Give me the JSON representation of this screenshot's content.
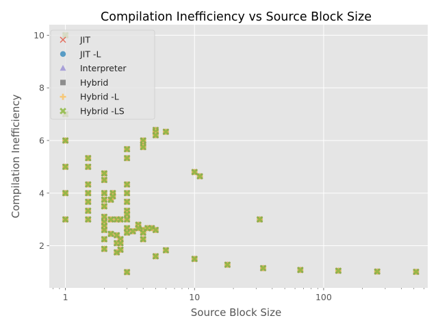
{
  "chart_data": {
    "type": "scatter",
    "title": "Compilation Inefficiency vs Source Block Size",
    "xlabel": "Source Block Size",
    "ylabel": "Compilation Inefficiency",
    "xscale": "log",
    "xlim": [
      0.75,
      640
    ],
    "ylim": [
      0.4,
      10.4
    ],
    "x_ticks": [
      1,
      10,
      100
    ],
    "x_tick_labels": [
      "1",
      "10",
      "100"
    ],
    "y_ticks": [
      2,
      4,
      6,
      8,
      10
    ],
    "y_tick_labels": [
      "2",
      "4",
      "6",
      "8",
      "10"
    ],
    "grid": true,
    "legend_position": "top-left",
    "series": [
      {
        "name": "JIT",
        "marker": "x",
        "color": "#E24A33"
      },
      {
        "name": "JIT -L",
        "marker": "circle",
        "color": "#348ABD"
      },
      {
        "name": "Interpreter",
        "marker": "triangle",
        "color": "#988ED5"
      },
      {
        "name": "Hybrid",
        "marker": "square",
        "color": "#777777"
      },
      {
        "name": "Hybrid -L",
        "marker": "plus",
        "color": "#FBC15E"
      },
      {
        "name": "Hybrid -LS",
        "marker": "x-filled",
        "color": "#8EBA42"
      }
    ],
    "points": [
      [
        1,
        10
      ],
      [
        1,
        7
      ],
      [
        1,
        6
      ],
      [
        1,
        5
      ],
      [
        1,
        4
      ],
      [
        1,
        3
      ],
      [
        1.5,
        5.33
      ],
      [
        1.5,
        5
      ],
      [
        1.5,
        4.33
      ],
      [
        1.5,
        4
      ],
      [
        1.5,
        3.67
      ],
      [
        1.5,
        3.33
      ],
      [
        1.5,
        3
      ],
      [
        2,
        4.75
      ],
      [
        2,
        4.5
      ],
      [
        2,
        4
      ],
      [
        2,
        3.75
      ],
      [
        2,
        3.5
      ],
      [
        2,
        3.1
      ],
      [
        2,
        2.9
      ],
      [
        2,
        2.75
      ],
      [
        2,
        2.6
      ],
      [
        2,
        2.25
      ],
      [
        2,
        1.88
      ],
      [
        2.25,
        3.75
      ],
      [
        2.25,
        3
      ],
      [
        2.25,
        2.45
      ],
      [
        2.33,
        4
      ],
      [
        2.33,
        3.88
      ],
      [
        2.5,
        3
      ],
      [
        2.5,
        2.4
      ],
      [
        2.5,
        2.1
      ],
      [
        2.5,
        1.75
      ],
      [
        2.67,
        3
      ],
      [
        2.67,
        2.25
      ],
      [
        2.67,
        2.1
      ],
      [
        2.67,
        1.85
      ],
      [
        3,
        5.67
      ],
      [
        3,
        5.33
      ],
      [
        3,
        4.33
      ],
      [
        3,
        4
      ],
      [
        3,
        3.67
      ],
      [
        3,
        3.33
      ],
      [
        3,
        3.2
      ],
      [
        3,
        3
      ],
      [
        3,
        2.67
      ],
      [
        3,
        2.5
      ],
      [
        3,
        1
      ],
      [
        3.33,
        2.55
      ],
      [
        3.67,
        2.8
      ],
      [
        3.67,
        2.67
      ],
      [
        4,
        6
      ],
      [
        4,
        5.83
      ],
      [
        4,
        5.75
      ],
      [
        4,
        2.6
      ],
      [
        4,
        2.5
      ],
      [
        4,
        2.25
      ],
      [
        4.33,
        2.67
      ],
      [
        4.67,
        2.67
      ],
      [
        5,
        6.4
      ],
      [
        5,
        6.33
      ],
      [
        5,
        6.2
      ],
      [
        5,
        2.6
      ],
      [
        5,
        1.6
      ],
      [
        6,
        6.33
      ],
      [
        6,
        1.83
      ],
      [
        10,
        4.8
      ],
      [
        10,
        1.5
      ],
      [
        11,
        4.64
      ],
      [
        18,
        1.28
      ],
      [
        32,
        3
      ],
      [
        34,
        1.15
      ],
      [
        66,
        1.08
      ],
      [
        130,
        1.05
      ],
      [
        260,
        1.02
      ],
      [
        520,
        1.01
      ]
    ]
  }
}
